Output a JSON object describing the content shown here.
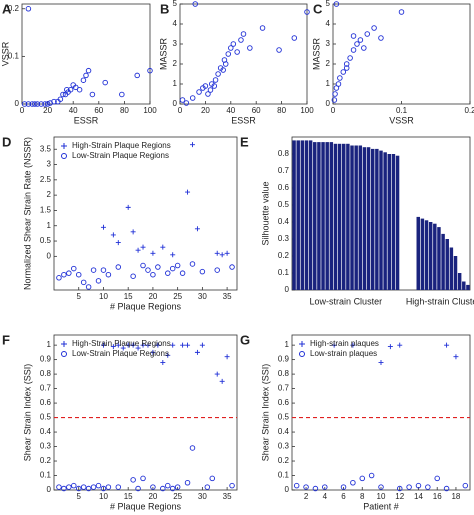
{
  "chart_data": [
    {
      "type": "scatter",
      "label": "A",
      "xlabel": "ESSR",
      "ylabel": "VSSR",
      "xlim": [
        0,
        100
      ],
      "ylim": [
        0,
        0.21
      ],
      "xticks": [
        0,
        20,
        40,
        60,
        80,
        100
      ],
      "yticks": [
        0,
        0.1,
        0.2
      ],
      "series": [
        {
          "color": "#1f2fd6",
          "marker": "o",
          "x": [
            2,
            5,
            8,
            10,
            12,
            15,
            18,
            20,
            22,
            25,
            28,
            30,
            32,
            34,
            35,
            36,
            38,
            40,
            42,
            45,
            48,
            50,
            52,
            55,
            65,
            78,
            90,
            100,
            5
          ],
          "values": [
            0,
            0,
            0,
            0,
            0,
            0,
            0,
            0,
            0.002,
            0.005,
            0.005,
            0.01,
            0.02,
            0.02,
            0.03,
            0.025,
            0.03,
            0.04,
            0.035,
            0.03,
            0.05,
            0.06,
            0.07,
            0.02,
            0.045,
            0.02,
            0.06,
            0.07,
            0.2
          ]
        }
      ]
    },
    {
      "type": "scatter",
      "label": "B",
      "xlabel": "ESSR",
      "ylabel": "MASSR",
      "xlim": [
        0,
        100
      ],
      "ylim": [
        0,
        5
      ],
      "xticks": [
        0,
        20,
        40,
        60,
        80,
        100
      ],
      "yticks": [
        0,
        1,
        2,
        3,
        4,
        5
      ],
      "series": [
        {
          "color": "#1f2fd6",
          "marker": "o",
          "x": [
            2,
            5,
            10,
            15,
            18,
            20,
            22,
            24,
            25,
            27,
            28,
            30,
            32,
            34,
            35,
            36,
            38,
            40,
            42,
            45,
            48,
            50,
            55,
            65,
            78,
            90,
            100,
            12
          ],
          "values": [
            0.2,
            0.05,
            0.3,
            0.6,
            0.8,
            0.9,
            0.5,
            0.7,
            1,
            0.9,
            1.2,
            1.5,
            1.8,
            1.7,
            2.2,
            2,
            2.5,
            2.8,
            3,
            2.6,
            3.2,
            3.5,
            2.8,
            3.8,
            2.7,
            3.3,
            4.6,
            5
          ]
        }
      ]
    },
    {
      "type": "scatter",
      "label": "C",
      "xlabel": "VSSR",
      "ylabel": "MASSR",
      "xlim": [
        0,
        0.2
      ],
      "ylim": [
        0,
        5
      ],
      "xticks": [
        0,
        0.1,
        0.2
      ],
      "yticks": [
        0,
        1,
        2,
        3,
        4,
        5
      ],
      "series": [
        {
          "color": "#1f2fd6",
          "marker": "o",
          "x": [
            0.002,
            0.003,
            0.005,
            0.008,
            0.01,
            0.015,
            0.02,
            0.025,
            0.03,
            0.035,
            0.04,
            0.045,
            0.05,
            0.06,
            0.07,
            0.1,
            0.005,
            0.03,
            0.02
          ],
          "values": [
            0.2,
            0.5,
            0.8,
            1.0,
            1.3,
            1.6,
            2.0,
            2.3,
            2.7,
            3.0,
            3.2,
            2.8,
            3.5,
            3.8,
            3.3,
            4.6,
            5.0,
            3.4,
            1.8
          ]
        }
      ]
    },
    {
      "type": "scatter",
      "label": "D",
      "xlabel": "# Plaque Regions",
      "ylabel": "Normalized Shear Strain Rate (NSSR)",
      "xlim": [
        0,
        37
      ],
      "ylim": [
        -1.1,
        3.9
      ],
      "xticks": [
        5,
        10,
        15,
        20,
        25,
        30,
        35
      ],
      "yticks": [
        0,
        0.5,
        1,
        1.5,
        2,
        2.5,
        3,
        3.5
      ],
      "legend": "upper left",
      "series": [
        {
          "name": "High-Strain Plaque Regions",
          "color": "#1f2fd6",
          "marker": "+",
          "x": [
            10,
            12,
            13,
            15,
            16,
            17,
            18,
            20,
            22,
            24,
            27,
            28,
            29,
            33,
            34,
            35
          ],
          "values": [
            0.95,
            0.7,
            0.45,
            1.6,
            0.8,
            0.2,
            0.3,
            0.1,
            0.3,
            0.05,
            2.1,
            3.65,
            0.9,
            0.1,
            0.05,
            0.1
          ]
        },
        {
          "name": "Low-Strain Plaque Regions",
          "color": "#1f2fd6",
          "marker": "o",
          "x": [
            1,
            2,
            3,
            4,
            5,
            6,
            7,
            8,
            9,
            10,
            11,
            13,
            16,
            18,
            19,
            20,
            21,
            23,
            24,
            25,
            26,
            28,
            30,
            33,
            36
          ],
          "values": [
            -0.7,
            -0.6,
            -0.55,
            -0.4,
            -0.6,
            -0.85,
            -1.0,
            -0.45,
            -0.8,
            -0.45,
            -0.6,
            -0.35,
            -0.65,
            -0.3,
            -0.45,
            -0.6,
            -0.35,
            -0.55,
            -0.4,
            -0.3,
            -0.55,
            -0.25,
            -0.5,
            -0.45,
            -0.35
          ]
        }
      ]
    },
    {
      "type": "bar",
      "label": "E",
      "ylabel": "Silhouette value",
      "ylim": [
        0,
        0.9
      ],
      "yticks": [
        0,
        0.1,
        0.2,
        0.3,
        0.4,
        0.5,
        0.6,
        0.7,
        0.8
      ],
      "color": "#1a237e",
      "group_labels": [
        "Low-strain Cluster",
        "High-strain Cluster"
      ],
      "values": [
        0.88,
        0.88,
        0.88,
        0.88,
        0.88,
        0.87,
        0.87,
        0.87,
        0.87,
        0.87,
        0.86,
        0.86,
        0.86,
        0.86,
        0.85,
        0.85,
        0.85,
        0.84,
        0.84,
        0.83,
        0.83,
        0.82,
        0.81,
        0.8,
        0.8,
        0.79,
        null,
        null,
        null,
        null,
        0.43,
        0.42,
        0.41,
        0.4,
        0.39,
        0.37,
        0.33,
        0.3,
        0.25,
        0.2,
        0.1,
        0.05,
        0.03
      ]
    },
    {
      "type": "scatter",
      "label": "F",
      "xlabel": "# Plaque Regions",
      "ylabel": "Shear Strain Index (SSI)",
      "xlim": [
        0,
        37
      ],
      "ylim": [
        0,
        1.07
      ],
      "xticks": [
        5,
        10,
        15,
        20,
        25,
        30,
        35
      ],
      "yticks": [
        0,
        0.1,
        0.2,
        0.3,
        0.4,
        0.5,
        0.6,
        0.7,
        0.8,
        0.9,
        1
      ],
      "legend": "upper left",
      "hline": {
        "value": 0.5,
        "color": "#e02020"
      },
      "series": [
        {
          "name": "High-Strain Plaque Regions",
          "color": "#1f2fd6",
          "marker": "+",
          "x": [
            10,
            12,
            13,
            14,
            15,
            16,
            17,
            18,
            19,
            20,
            21,
            22,
            23,
            24,
            26,
            27,
            29,
            30,
            33,
            34,
            35
          ],
          "values": [
            1,
            0.99,
            1,
            0.98,
            1,
            1,
            0.98,
            1,
            1,
            0.95,
            1,
            0.88,
            0.93,
            1,
            1,
            1,
            0.95,
            1,
            0.8,
            0.75,
            0.92
          ]
        },
        {
          "name": "Low-Strain Plaque Regions",
          "color": "#1f2fd6",
          "marker": "o",
          "x": [
            1,
            2,
            3,
            4,
            5,
            6,
            7,
            8,
            9,
            10,
            11,
            13,
            16,
            17,
            18,
            20,
            22,
            23,
            24,
            25,
            27,
            28,
            31,
            32,
            36
          ],
          "values": [
            0.02,
            0.01,
            0.02,
            0.03,
            0.01,
            0.02,
            0.01,
            0.02,
            0.03,
            0.01,
            0.02,
            0.02,
            0.07,
            0.01,
            0.08,
            0.02,
            0.01,
            0.03,
            0.01,
            0.02,
            0.05,
            0.29,
            0.02,
            0.08,
            0.03
          ]
        }
      ]
    },
    {
      "type": "scatter",
      "label": "G",
      "xlabel": "Patient #",
      "ylabel": "Shear Strain Index (SSI)",
      "xlim": [
        0.5,
        19.5
      ],
      "ylim": [
        0,
        1.07
      ],
      "xticks": [
        2,
        4,
        6,
        8,
        10,
        12,
        14,
        16,
        18
      ],
      "yticks": [
        0,
        0.1,
        0.2,
        0.3,
        0.4,
        0.5,
        0.6,
        0.7,
        0.8,
        0.9,
        1
      ],
      "legend": "upper left",
      "hline": {
        "value": 0.5,
        "color": "#e02020"
      },
      "series": [
        {
          "name": "High-strain plaques",
          "color": "#1f2fd6",
          "marker": "+",
          "x": [
            5,
            7,
            10,
            11,
            12,
            17,
            18
          ],
          "values": [
            1,
            1,
            0.88,
            0.99,
            1,
            1,
            0.92
          ]
        },
        {
          "name": "Low-strain plaques",
          "color": "#1f2fd6",
          "marker": "o",
          "x": [
            1,
            2,
            3,
            4,
            6,
            7,
            8,
            9,
            10,
            12,
            13,
            14,
            15,
            16,
            17,
            19
          ],
          "values": [
            0.03,
            0.02,
            0.01,
            0.02,
            0.02,
            0.05,
            0.08,
            0.1,
            0.02,
            0.01,
            0.02,
            0.03,
            0.02,
            0.08,
            0.01,
            0.03
          ]
        }
      ]
    }
  ]
}
